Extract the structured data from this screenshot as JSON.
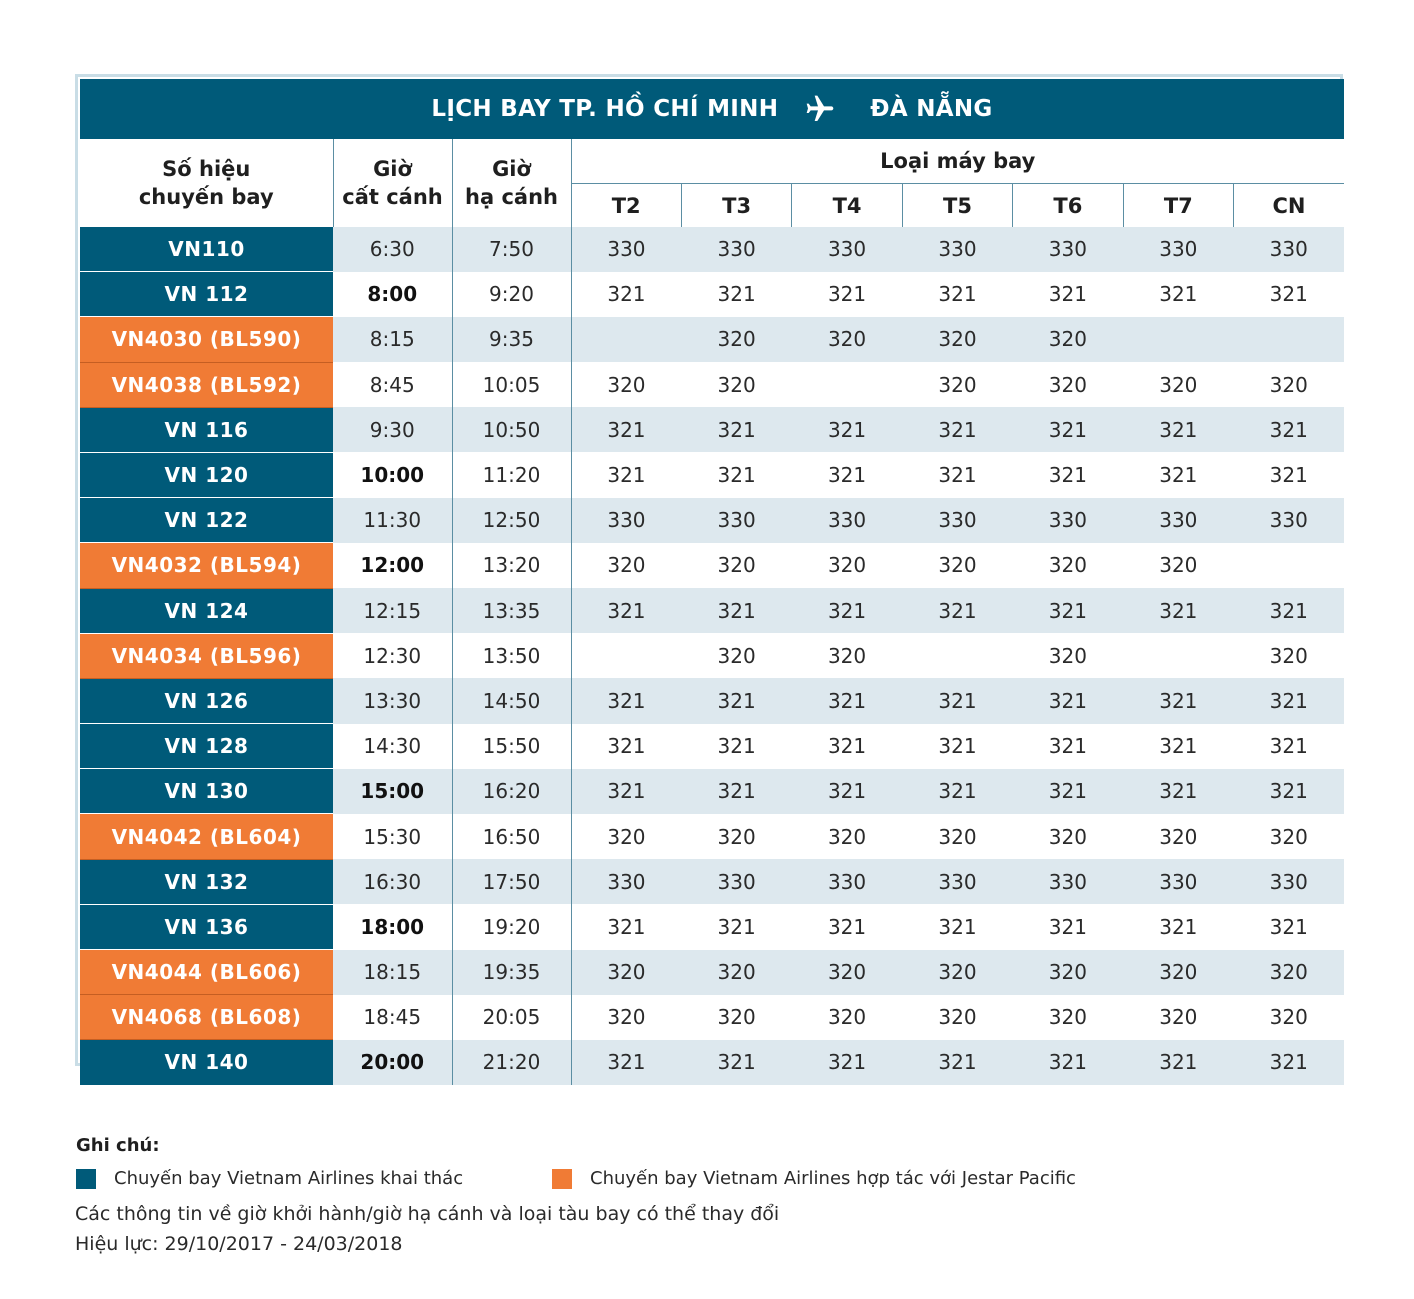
{
  "header": {
    "title_from": "LỊCH BAY TP. HỒ CHÍ MINH",
    "title_to": "ĐÀ NẴNG",
    "icon": "airplane-icon"
  },
  "columns": {
    "flight": "Số hiệu\nchuyến bay",
    "depart": "Giờ\ncất cánh",
    "arrive": "Giờ\nhạ cánh",
    "aircraft_group": "Loại máy bay",
    "days": [
      "T2",
      "T3",
      "T4",
      "T5",
      "T6",
      "T7",
      "CN"
    ]
  },
  "colors": {
    "vietnam_airlines": "#005a79",
    "jetstar_pacific": "#f07b35",
    "row_shade": "#dde8ee"
  },
  "rows": [
    {
      "flight": "VN110",
      "type": "va",
      "dep": "6:30",
      "dep_bold": false,
      "arr": "7:50",
      "days": [
        "330",
        "330",
        "330",
        "330",
        "330",
        "330",
        "330"
      ]
    },
    {
      "flight": "VN 112",
      "type": "va",
      "dep": "8:00",
      "dep_bold": true,
      "arr": "9:20",
      "days": [
        "321",
        "321",
        "321",
        "321",
        "321",
        "321",
        "321"
      ]
    },
    {
      "flight": "VN4030 (BL590)",
      "type": "jp",
      "dep": "8:15",
      "dep_bold": false,
      "arr": "9:35",
      "days": [
        "",
        "320",
        "320",
        "320",
        "320",
        "",
        ""
      ]
    },
    {
      "flight": "VN4038 (BL592)",
      "type": "jp",
      "dep": "8:45",
      "dep_bold": false,
      "arr": "10:05",
      "days": [
        "320",
        "320",
        "",
        "320",
        "320",
        "320",
        "320"
      ]
    },
    {
      "flight": "VN 116",
      "type": "va",
      "dep": "9:30",
      "dep_bold": false,
      "arr": "10:50",
      "days": [
        "321",
        "321",
        "321",
        "321",
        "321",
        "321",
        "321"
      ]
    },
    {
      "flight": "VN 120",
      "type": "va",
      "dep": "10:00",
      "dep_bold": true,
      "arr": "11:20",
      "days": [
        "321",
        "321",
        "321",
        "321",
        "321",
        "321",
        "321"
      ]
    },
    {
      "flight": "VN 122",
      "type": "va",
      "dep": "11:30",
      "dep_bold": false,
      "arr": "12:50",
      "days": [
        "330",
        "330",
        "330",
        "330",
        "330",
        "330",
        "330"
      ]
    },
    {
      "flight": "VN4032 (BL594)",
      "type": "jp",
      "dep": "12:00",
      "dep_bold": true,
      "arr": "13:20",
      "days": [
        "320",
        "320",
        "320",
        "320",
        "320",
        "320",
        ""
      ]
    },
    {
      "flight": "VN 124",
      "type": "va",
      "dep": "12:15",
      "dep_bold": false,
      "arr": "13:35",
      "days": [
        "321",
        "321",
        "321",
        "321",
        "321",
        "321",
        "321"
      ]
    },
    {
      "flight": "VN4034 (BL596)",
      "type": "jp",
      "dep": "12:30",
      "dep_bold": false,
      "arr": "13:50",
      "days": [
        "",
        "320",
        "320",
        "",
        "320",
        "",
        "320"
      ]
    },
    {
      "flight": "VN 126",
      "type": "va",
      "dep": "13:30",
      "dep_bold": false,
      "arr": "14:50",
      "days": [
        "321",
        "321",
        "321",
        "321",
        "321",
        "321",
        "321"
      ]
    },
    {
      "flight": "VN 128",
      "type": "va",
      "dep": "14:30",
      "dep_bold": false,
      "arr": "15:50",
      "days": [
        "321",
        "321",
        "321",
        "321",
        "321",
        "321",
        "321"
      ]
    },
    {
      "flight": "VN 130",
      "type": "va",
      "dep": "15:00",
      "dep_bold": true,
      "arr": "16:20",
      "days": [
        "321",
        "321",
        "321",
        "321",
        "321",
        "321",
        "321"
      ]
    },
    {
      "flight": "VN4042 (BL604)",
      "type": "jp",
      "dep": "15:30",
      "dep_bold": false,
      "arr": "16:50",
      "days": [
        "320",
        "320",
        "320",
        "320",
        "320",
        "320",
        "320"
      ]
    },
    {
      "flight": "VN 132",
      "type": "va",
      "dep": "16:30",
      "dep_bold": false,
      "arr": "17:50",
      "days": [
        "330",
        "330",
        "330",
        "330",
        "330",
        "330",
        "330"
      ]
    },
    {
      "flight": "VN 136",
      "type": "va",
      "dep": "18:00",
      "dep_bold": true,
      "arr": "19:20",
      "days": [
        "321",
        "321",
        "321",
        "321",
        "321",
        "321",
        "321"
      ]
    },
    {
      "flight": "VN4044 (BL606)",
      "type": "jp",
      "dep": "18:15",
      "dep_bold": false,
      "arr": "19:35",
      "days": [
        "320",
        "320",
        "320",
        "320",
        "320",
        "320",
        "320"
      ]
    },
    {
      "flight": "VN4068 (BL608)",
      "type": "jp",
      "dep": "18:45",
      "dep_bold": false,
      "arr": "20:05",
      "days": [
        "320",
        "320",
        "320",
        "320",
        "320",
        "320",
        "320"
      ]
    },
    {
      "flight": "VN 140",
      "type": "va",
      "dep": "20:00",
      "dep_bold": true,
      "arr": "21:20",
      "days": [
        "321",
        "321",
        "321",
        "321",
        "321",
        "321",
        "321"
      ]
    }
  ],
  "notes": {
    "title": "Ghi chú:",
    "legend_va": "Chuyến bay Vietnam Airlines khai thác",
    "legend_jp": "Chuyến bay Vietnam Airlines hợp tác với Jestar Pacific",
    "disclaimer": "Các thông tin về giờ khởi hành/giờ hạ cánh và loại tàu bay có thể thay đổi",
    "validity": "Hiệu lực:  29/10/2017 - 24/03/2018"
  }
}
